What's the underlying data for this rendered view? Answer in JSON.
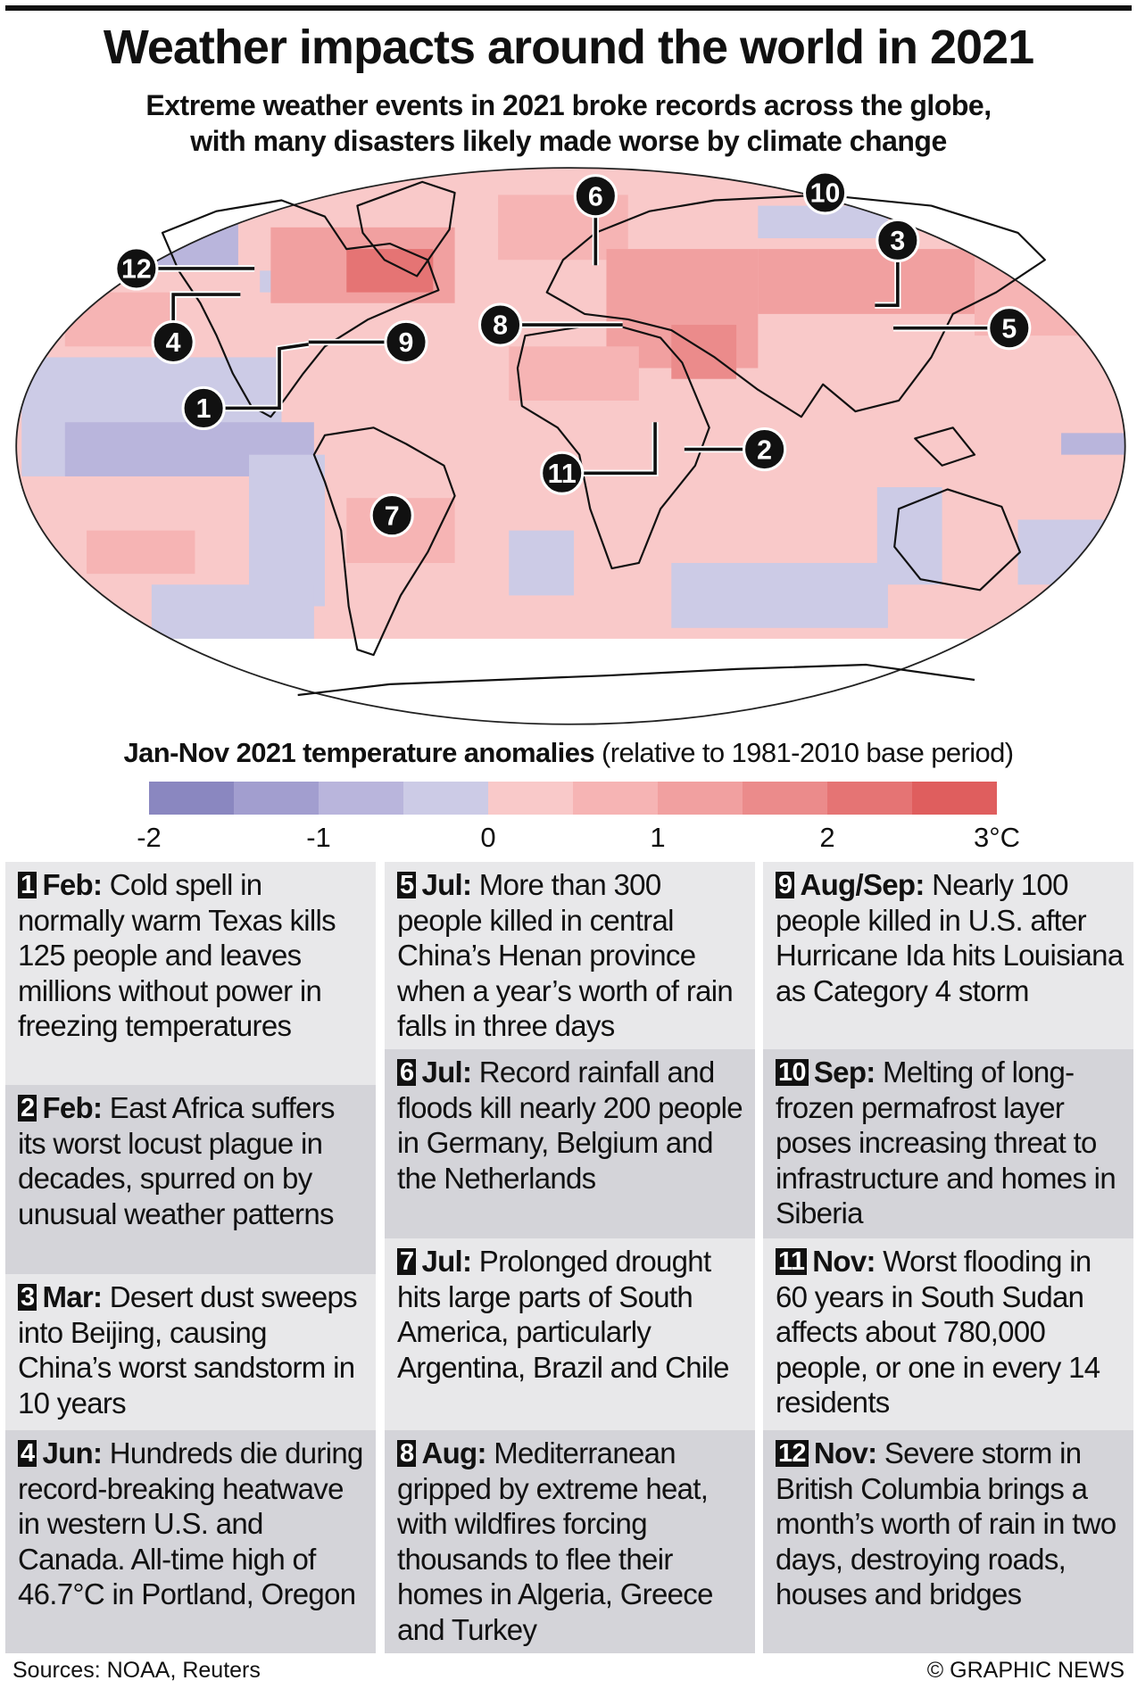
{
  "header": {
    "title": "Weather impacts around the world in 2021",
    "subtitle_lines": [
      "Extreme weather events in 2021 broke records across the globe,",
      "with many disasters likely made worse by climate change"
    ]
  },
  "legend": {
    "title_bold": "Jan-Nov 2021 temperature anomalies",
    "title_rest": " (relative to 1981-2010 base period)",
    "colors": [
      "#8a87c0",
      "#a29ecf",
      "#b9b5dc",
      "#cccbe6",
      "#f9c9c9",
      "#f6b4b4",
      "#f1a0a0",
      "#eb8b8b",
      "#e57474",
      "#df5e5e"
    ],
    "ticks": [
      "-2",
      "-1",
      "0",
      "1",
      "2",
      "3°C"
    ]
  },
  "map": {
    "markers": [
      "1",
      "2",
      "3",
      "4",
      "5",
      "6",
      "7",
      "8",
      "9",
      "10",
      "11",
      "12"
    ]
  },
  "events": [
    {
      "num": "1",
      "date": "Feb:",
      "text": " Cold spell in normally warm Texas kills 125 people and leaves millions without power in freezing temperatures"
    },
    {
      "num": "2",
      "date": "Feb:",
      "text": " East Africa suffers its worst locust plague in decades, spurred on by unusual weather patterns"
    },
    {
      "num": "3",
      "date": "Mar:",
      "text": " Desert dust sweeps into Beijing, causing China’s worst sandstorm in 10 years"
    },
    {
      "num": "4",
      "date": "Jun:",
      "text": " Hundreds die during record-breaking heatwave in western U.S. and Canada. All-time high of 46.7°C in Portland, Oregon"
    },
    {
      "num": "5",
      "date": "Jul:",
      "text": " More than 300 people killed in central China’s Henan province when a year’s worth of rain falls in three days"
    },
    {
      "num": "6",
      "date": "Jul:",
      "text": " Record rainfall and floods kill nearly 200 people in Germany, Belgium and the Netherlands"
    },
    {
      "num": "7",
      "date": "Jul:",
      "text": " Prolonged drought hits large parts of South America, particularly Argentina, Brazil and Chile"
    },
    {
      "num": "8",
      "date": "Aug:",
      "text": " Mediterranean gripped by extreme heat, with wildfires forcing thousands to flee their homes in Algeria, Greece and Turkey"
    },
    {
      "num": "9",
      "date": "Aug/Sep:",
      "text": " Nearly 100 people killed in U.S. after Hurricane Ida hits Louisiana as Category 4 storm"
    },
    {
      "num": "10",
      "date": "Sep:",
      "text": " Melting of long-frozen permafrost layer poses increasing threat to infrastructure and homes in Siberia"
    },
    {
      "num": "11",
      "date": "Nov:",
      "text": " Worst flooding in 60 years in South Sudan affects about 780,000 people, or one in every 14 residents"
    },
    {
      "num": "12",
      "date": "Nov:",
      "text": " Severe storm in British Columbia brings a month’s worth of rain in two days, destroying roads, houses and bridges"
    }
  ],
  "footer": {
    "sources": "Sources: NOAA, Reuters",
    "credit": "© GRAPHIC NEWS"
  }
}
